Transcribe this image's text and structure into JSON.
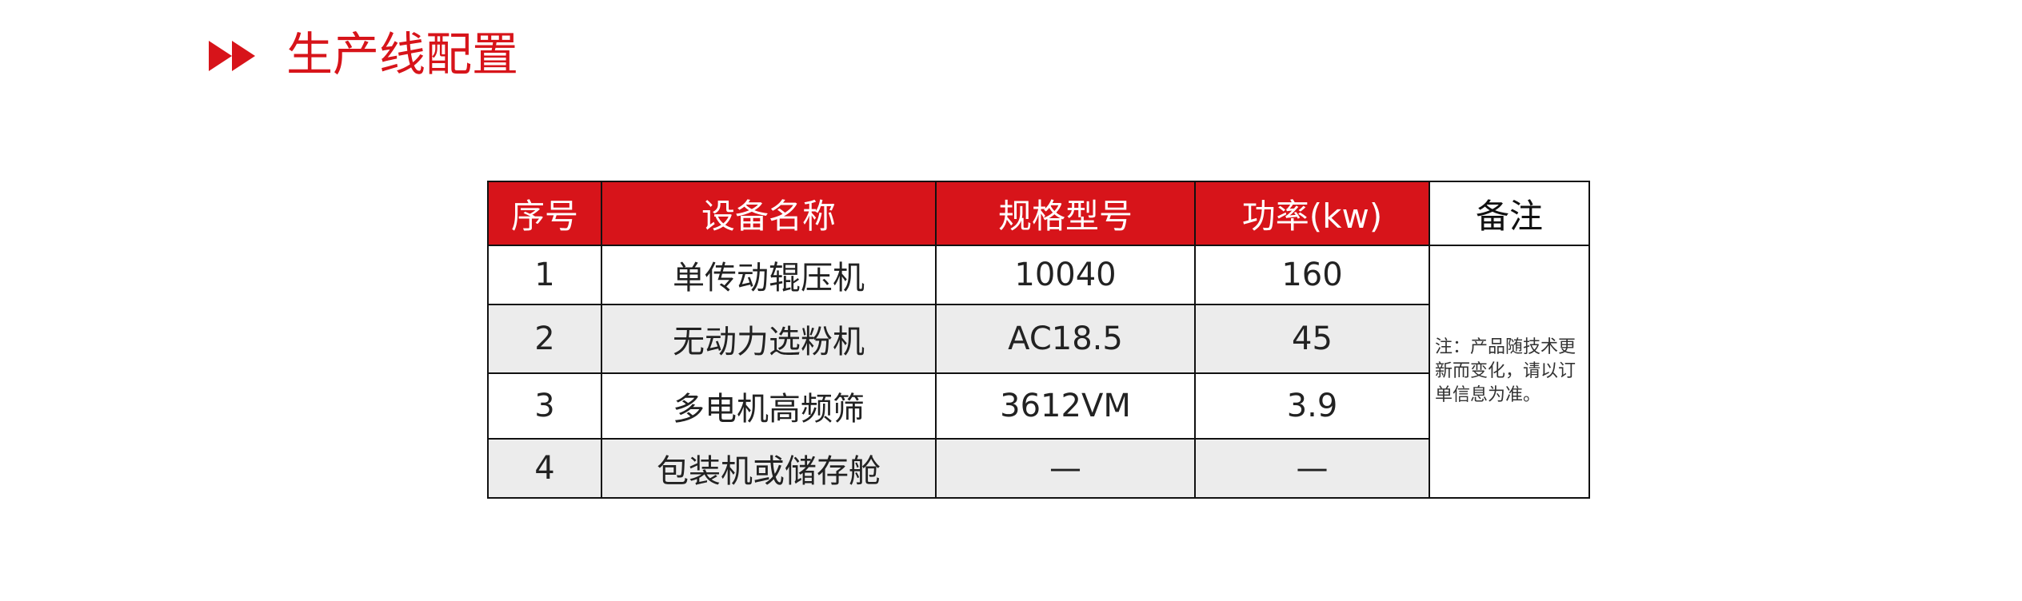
{
  "header": {
    "title": "生产线配置",
    "icon": "double-play-arrow-icon",
    "accent": "#d7141a"
  },
  "table": {
    "columns": [
      "序号",
      "设备名称",
      "规格型号",
      "功率(kw)",
      "备注"
    ],
    "rows": [
      {
        "no": "1",
        "name": "单传动辊压机",
        "model": "10040",
        "power": "160"
      },
      {
        "no": "2",
        "name": "无动力选粉机",
        "model": "AC18.5",
        "power": "45"
      },
      {
        "no": "3",
        "name": "多电机高频筛",
        "model": "3612VM",
        "power": "3.9"
      },
      {
        "no": "4",
        "name": "包装机或储存舱",
        "model": "—",
        "power": "—"
      }
    ],
    "note": "注：产品随技术更新而变化，请以订单信息为准。"
  }
}
